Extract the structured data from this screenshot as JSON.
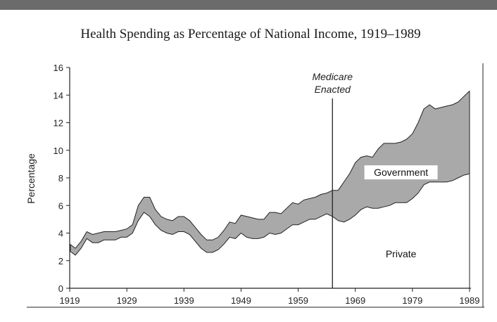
{
  "chart_data": {
    "type": "area",
    "title": "Health Spending as Percentage of National Income, 1919–1989",
    "xlabel": "",
    "ylabel": "Percentage",
    "xlim": [
      1919,
      1989
    ],
    "ylim": [
      0,
      16
    ],
    "x_ticks": [
      1919,
      1929,
      1939,
      1949,
      1959,
      1969,
      1979,
      1989
    ],
    "y_ticks": [
      0,
      2,
      4,
      6,
      8,
      10,
      12,
      14,
      16
    ],
    "grid": false,
    "stacked": true,
    "series": [
      {
        "name": "Private",
        "color": "#ffffff",
        "x": [
          1919,
          1920,
          1921,
          1922,
          1923,
          1924,
          1925,
          1926,
          1927,
          1928,
          1929,
          1930,
          1931,
          1932,
          1933,
          1934,
          1935,
          1936,
          1937,
          1938,
          1939,
          1940,
          1941,
          1942,
          1943,
          1944,
          1945,
          1946,
          1947,
          1948,
          1949,
          1950,
          1951,
          1952,
          1953,
          1954,
          1955,
          1956,
          1957,
          1958,
          1959,
          1960,
          1961,
          1962,
          1963,
          1964,
          1965,
          1966,
          1967,
          1968,
          1969,
          1970,
          1971,
          1972,
          1973,
          1974,
          1975,
          1976,
          1977,
          1978,
          1979,
          1980,
          1981,
          1982,
          1983,
          1984,
          1985,
          1986,
          1987,
          1988,
          1989
        ],
        "values": [
          2.7,
          2.4,
          2.9,
          3.6,
          3.3,
          3.3,
          3.5,
          3.5,
          3.5,
          3.7,
          3.7,
          4.0,
          4.9,
          5.5,
          5.2,
          4.6,
          4.2,
          4.0,
          3.9,
          4.1,
          4.1,
          3.9,
          3.4,
          2.9,
          2.6,
          2.6,
          2.8,
          3.2,
          3.7,
          3.6,
          4.0,
          3.7,
          3.6,
          3.6,
          3.7,
          4.0,
          3.9,
          4.0,
          4.3,
          4.6,
          4.6,
          4.8,
          5.0,
          5.0,
          5.2,
          5.4,
          5.2,
          4.9,
          4.8,
          5.0,
          5.3,
          5.7,
          5.9,
          5.8,
          5.8,
          5.9,
          6.0,
          6.2,
          6.2,
          6.2,
          6.5,
          6.9,
          7.5,
          7.7,
          7.7,
          7.7,
          7.7,
          7.8,
          8.0,
          8.2,
          8.3
        ]
      },
      {
        "name": "Government",
        "color": "#a9a9a9",
        "x": [
          1919,
          1920,
          1921,
          1922,
          1923,
          1924,
          1925,
          1926,
          1927,
          1928,
          1929,
          1930,
          1931,
          1932,
          1933,
          1934,
          1935,
          1936,
          1937,
          1938,
          1939,
          1940,
          1941,
          1942,
          1943,
          1944,
          1945,
          1946,
          1947,
          1948,
          1949,
          1950,
          1951,
          1952,
          1953,
          1954,
          1955,
          1956,
          1957,
          1958,
          1959,
          1960,
          1961,
          1962,
          1963,
          1964,
          1965,
          1966,
          1967,
          1968,
          1969,
          1970,
          1971,
          1972,
          1973,
          1974,
          1975,
          1976,
          1977,
          1978,
          1979,
          1980,
          1981,
          1982,
          1983,
          1984,
          1985,
          1986,
          1987,
          1988,
          1989
        ],
        "values": [
          0.5,
          0.5,
          0.5,
          0.5,
          0.6,
          0.7,
          0.6,
          0.6,
          0.6,
          0.5,
          0.6,
          0.6,
          1.1,
          1.1,
          1.4,
          1.1,
          1.0,
          1.0,
          1.0,
          1.1,
          1.1,
          1.0,
          1.0,
          1.0,
          0.9,
          0.9,
          0.9,
          1.0,
          1.1,
          1.1,
          1.3,
          1.5,
          1.5,
          1.4,
          1.3,
          1.5,
          1.6,
          1.4,
          1.5,
          1.6,
          1.5,
          1.6,
          1.5,
          1.6,
          1.6,
          1.5,
          1.9,
          2.2,
          2.9,
          3.3,
          3.8,
          3.8,
          3.7,
          3.7,
          4.3,
          4.6,
          4.5,
          4.3,
          4.4,
          4.6,
          4.7,
          5.1,
          5.5,
          5.6,
          5.3,
          5.4,
          5.5,
          5.5,
          5.5,
          5.7,
          6.0
        ]
      }
    ],
    "annotations": [
      {
        "text_line1": "Medicare",
        "text_line2": "Enacted",
        "x": 1965
      }
    ],
    "region_labels": [
      {
        "text": "Government",
        "x": 1977,
        "y": 8.4
      },
      {
        "text": "Private",
        "x": 1977,
        "y": 2.5
      }
    ]
  }
}
